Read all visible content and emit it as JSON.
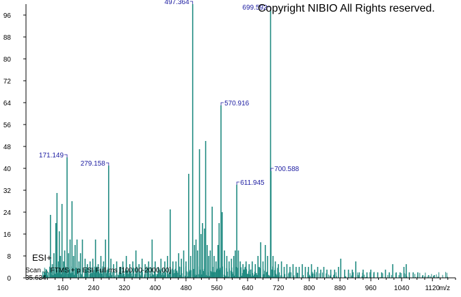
{
  "copyright": "Copyright NIBIO All Rights reserved.",
  "ion_mode": "ESI+",
  "scan_text": "Scan ... FTMS + p ESI Full ms [100.00-2000.00]",
  "retention": "35.634",
  "chart_data": {
    "type": "bar",
    "title": "",
    "xlabel": "m/z",
    "ylabel": "",
    "xlim": [
      100,
      1180
    ],
    "ylim": [
      0,
      100
    ],
    "xticks": [
      160,
      240,
      320,
      400,
      480,
      560,
      640,
      720,
      800,
      880,
      960,
      1040,
      1120
    ],
    "yticks": [
      0,
      8,
      16,
      24,
      32,
      40,
      48,
      56,
      64,
      72,
      80,
      88,
      96
    ],
    "colors": {
      "peaks": "#1f8a80",
      "labels": "#1a1aa0",
      "axis": "#000000"
    },
    "peaks": [
      {
        "mz": 113,
        "int": 2
      },
      {
        "mz": 118,
        "int": 3
      },
      {
        "mz": 122,
        "int": 2
      },
      {
        "mz": 128,
        "int": 23
      },
      {
        "mz": 133,
        "int": 5
      },
      {
        "mz": 137,
        "int": 9
      },
      {
        "mz": 142,
        "int": 20
      },
      {
        "mz": 145,
        "int": 31
      },
      {
        "mz": 149,
        "int": 6
      },
      {
        "mz": 151,
        "int": 17
      },
      {
        "mz": 154,
        "int": 8
      },
      {
        "mz": 158,
        "int": 27
      },
      {
        "mz": 162,
        "int": 6
      },
      {
        "mz": 165,
        "int": 10
      },
      {
        "mz": 171.149,
        "int": 44,
        "label": "171.149"
      },
      {
        "mz": 175,
        "int": 9
      },
      {
        "mz": 179,
        "int": 14
      },
      {
        "mz": 184,
        "int": 28
      },
      {
        "mz": 188,
        "int": 8
      },
      {
        "mz": 192,
        "int": 12
      },
      {
        "mz": 197,
        "int": 14
      },
      {
        "mz": 202,
        "int": 6
      },
      {
        "mz": 206,
        "int": 9
      },
      {
        "mz": 211,
        "int": 14
      },
      {
        "mz": 218,
        "int": 7
      },
      {
        "mz": 224,
        "int": 5
      },
      {
        "mz": 231,
        "int": 6
      },
      {
        "mz": 238,
        "int": 7
      },
      {
        "mz": 245,
        "int": 14
      },
      {
        "mz": 252,
        "int": 5
      },
      {
        "mz": 259,
        "int": 8
      },
      {
        "mz": 266,
        "int": 6
      },
      {
        "mz": 271,
        "int": 14
      },
      {
        "mz": 279.158,
        "int": 41,
        "label": "279.158"
      },
      {
        "mz": 285,
        "int": 7
      },
      {
        "mz": 292,
        "int": 5
      },
      {
        "mz": 300,
        "int": 6
      },
      {
        "mz": 308,
        "int": 4
      },
      {
        "mz": 316,
        "int": 6
      },
      {
        "mz": 325,
        "int": 8
      },
      {
        "mz": 334,
        "int": 5
      },
      {
        "mz": 342,
        "int": 6
      },
      {
        "mz": 350,
        "int": 10
      },
      {
        "mz": 358,
        "int": 5
      },
      {
        "mz": 366,
        "int": 7
      },
      {
        "mz": 374,
        "int": 5
      },
      {
        "mz": 383,
        "int": 6
      },
      {
        "mz": 392,
        "int": 14
      },
      {
        "mz": 400,
        "int": 6
      },
      {
        "mz": 408,
        "int": 4
      },
      {
        "mz": 415,
        "int": 7
      },
      {
        "mz": 425,
        "int": 6
      },
      {
        "mz": 432,
        "int": 8
      },
      {
        "mz": 439,
        "int": 25
      },
      {
        "mz": 446,
        "int": 6
      },
      {
        "mz": 454,
        "int": 6
      },
      {
        "mz": 461,
        "int": 9
      },
      {
        "mz": 468,
        "int": 7
      },
      {
        "mz": 474,
        "int": 10
      },
      {
        "mz": 480,
        "int": 6
      },
      {
        "mz": 487,
        "int": 38
      },
      {
        "mz": 492,
        "int": 8
      },
      {
        "mz": 497.364,
        "int": 100,
        "label": "497.364"
      },
      {
        "mz": 502,
        "int": 12
      },
      {
        "mz": 506,
        "int": 14
      },
      {
        "mz": 510,
        "int": 10
      },
      {
        "mz": 515,
        "int": 47
      },
      {
        "mz": 519,
        "int": 16
      },
      {
        "mz": 523,
        "int": 20
      },
      {
        "mz": 528,
        "int": 18
      },
      {
        "mz": 531,
        "int": 50
      },
      {
        "mz": 535,
        "int": 12
      },
      {
        "mz": 539,
        "int": 8
      },
      {
        "mz": 543,
        "int": 10
      },
      {
        "mz": 548,
        "int": 26
      },
      {
        "mz": 553,
        "int": 8
      },
      {
        "mz": 558,
        "int": 6
      },
      {
        "mz": 563,
        "int": 12
      },
      {
        "mz": 566,
        "int": 20
      },
      {
        "mz": 570.916,
        "int": 63,
        "label": "570.916"
      },
      {
        "mz": 574,
        "int": 24
      },
      {
        "mz": 580,
        "int": 10
      },
      {
        "mz": 586,
        "int": 8
      },
      {
        "mz": 592,
        "int": 6
      },
      {
        "mz": 598,
        "int": 7
      },
      {
        "mz": 604,
        "int": 8
      },
      {
        "mz": 608,
        "int": 10
      },
      {
        "mz": 611.945,
        "int": 34,
        "label": "611.945"
      },
      {
        "mz": 616,
        "int": 10
      },
      {
        "mz": 621,
        "int": 6
      },
      {
        "mz": 628,
        "int": 5
      },
      {
        "mz": 636,
        "int": 6
      },
      {
        "mz": 644,
        "int": 5
      },
      {
        "mz": 652,
        "int": 6
      },
      {
        "mz": 660,
        "int": 5
      },
      {
        "mz": 667,
        "int": 8
      },
      {
        "mz": 674,
        "int": 13
      },
      {
        "mz": 680,
        "int": 6
      },
      {
        "mz": 686,
        "int": 12
      },
      {
        "mz": 692,
        "int": 8
      },
      {
        "mz": 699.592,
        "int": 98,
        "label": "699.592"
      },
      {
        "mz": 700.588,
        "int": 39,
        "label": "700.588"
      },
      {
        "mz": 706,
        "int": 8
      },
      {
        "mz": 712,
        "int": 6
      },
      {
        "mz": 720,
        "int": 5
      },
      {
        "mz": 728,
        "int": 6
      },
      {
        "mz": 735,
        "int": 4
      },
      {
        "mz": 742,
        "int": 5
      },
      {
        "mz": 750,
        "int": 4
      },
      {
        "mz": 758,
        "int": 5
      },
      {
        "mz": 766,
        "int": 4
      },
      {
        "mz": 774,
        "int": 4
      },
      {
        "mz": 782,
        "int": 5
      },
      {
        "mz": 790,
        "int": 4
      },
      {
        "mz": 798,
        "int": 4
      },
      {
        "mz": 806,
        "int": 5
      },
      {
        "mz": 814,
        "int": 3
      },
      {
        "mz": 822,
        "int": 4
      },
      {
        "mz": 830,
        "int": 3
      },
      {
        "mz": 838,
        "int": 4
      },
      {
        "mz": 846,
        "int": 3
      },
      {
        "mz": 856,
        "int": 3
      },
      {
        "mz": 866,
        "int": 3
      },
      {
        "mz": 876,
        "int": 4
      },
      {
        "mz": 882,
        "int": 7
      },
      {
        "mz": 892,
        "int": 3
      },
      {
        "mz": 902,
        "int": 3
      },
      {
        "mz": 912,
        "int": 3
      },
      {
        "mz": 921,
        "int": 6
      },
      {
        "mz": 930,
        "int": 2
      },
      {
        "mz": 940,
        "int": 3
      },
      {
        "mz": 950,
        "int": 2
      },
      {
        "mz": 960,
        "int": 3
      },
      {
        "mz": 968,
        "int": 2
      },
      {
        "mz": 978,
        "int": 2
      },
      {
        "mz": 988,
        "int": 2
      },
      {
        "mz": 998,
        "int": 3
      },
      {
        "mz": 1008,
        "int": 2
      },
      {
        "mz": 1017,
        "int": 5
      },
      {
        "mz": 1026,
        "int": 2
      },
      {
        "mz": 1036,
        "int": 2
      },
      {
        "mz": 1046,
        "int": 4
      },
      {
        "mz": 1052,
        "int": 5
      },
      {
        "mz": 1060,
        "int": 2
      },
      {
        "mz": 1070,
        "int": 2
      },
      {
        "mz": 1082,
        "int": 2
      },
      {
        "mz": 1095,
        "int": 1
      },
      {
        "mz": 1110,
        "int": 1
      },
      {
        "mz": 1125,
        "int": 1
      }
    ]
  }
}
